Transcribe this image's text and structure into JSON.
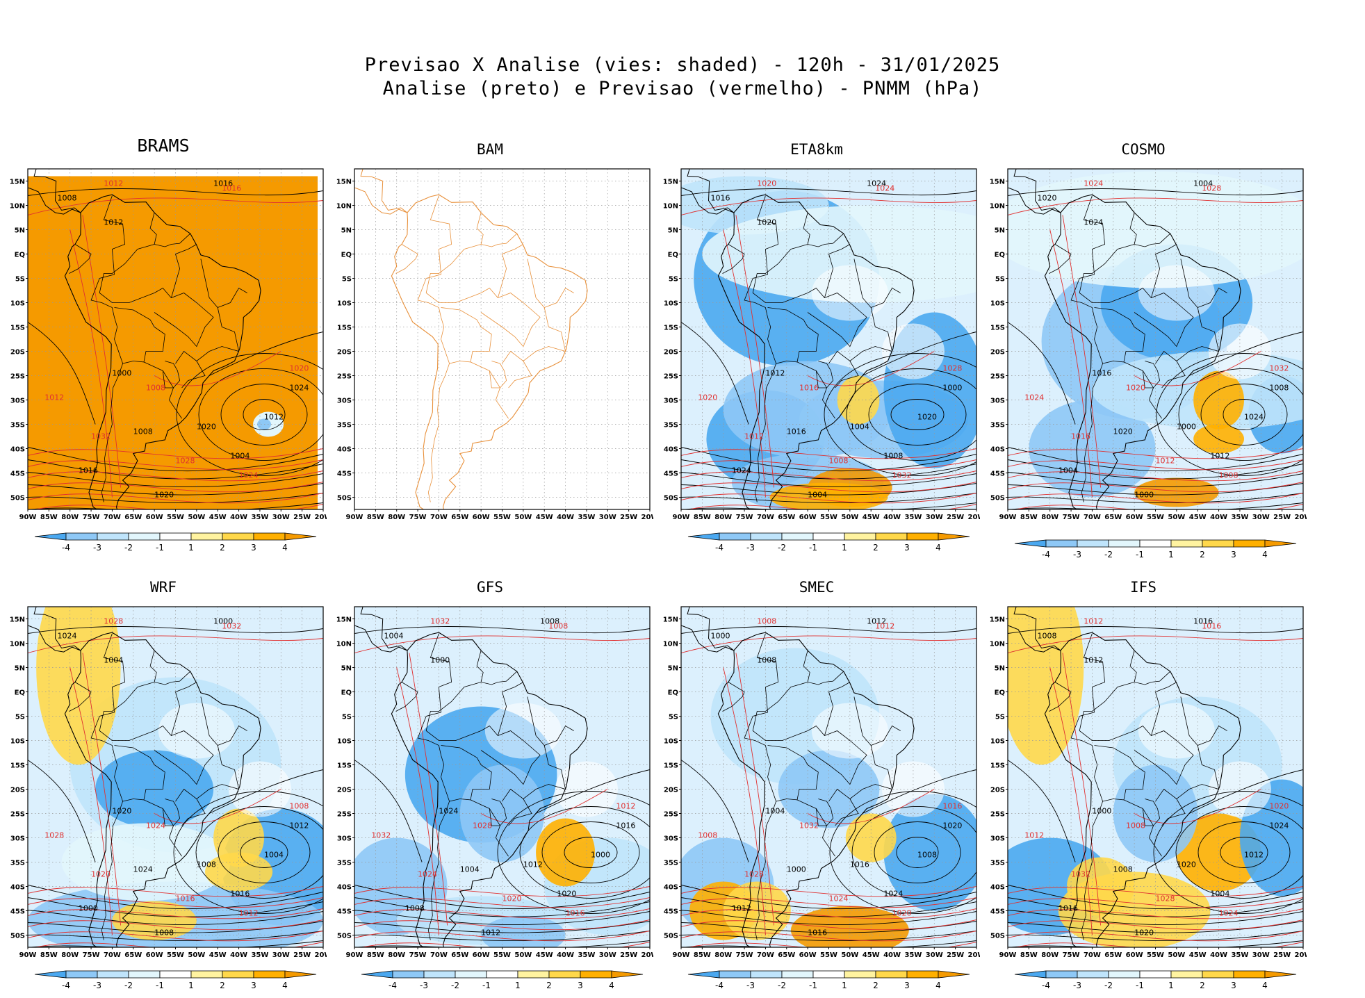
{
  "header": {
    "title_line1": "Previsao X Analise (vies: shaded) - 120h - 31/01/2025",
    "title_line2": "Analise (preto) e Previsao (vermelho) - PNMM (hPa)"
  },
  "axes": {
    "lat_labels": [
      "15N",
      "10N",
      "5N",
      "EQ",
      "5S",
      "10S",
      "15S",
      "20S",
      "25S",
      "30S",
      "35S",
      "40S",
      "45S",
      "50S"
    ],
    "lon_labels": [
      "90W",
      "85W",
      "80W",
      "75W",
      "70W",
      "65W",
      "60W",
      "55W",
      "50W",
      "45W",
      "40W",
      "35W",
      "30W",
      "25W",
      "20W"
    ]
  },
  "colorbar": {
    "labels": [
      "-4",
      "-3",
      "-2",
      "-1",
      "1",
      "2",
      "3",
      "4"
    ],
    "colors": [
      "#4aa8f0",
      "#8ec8f6",
      "#bfe4fb",
      "#e2f6fc",
      "#ffffff",
      "#fff3a0",
      "#ffd84a",
      "#ffb000",
      "#f59a00"
    ]
  },
  "colors": {
    "analysis_contour": "#000000",
    "forecast_contour": "#e03030",
    "border_bam": "#e8903a",
    "brams_fill": "#f59a00"
  },
  "contour_labels": {
    "black": [
      "1008",
      "1012",
      "1016",
      "1020",
      "1024",
      "1004",
      "1000"
    ],
    "red": [
      "1008",
      "1012",
      "1016",
      "1020",
      "1024",
      "1028",
      "1032"
    ]
  },
  "panels": [
    {
      "id": "brams",
      "title": "BRAMS",
      "style": "brams",
      "colorbar": true
    },
    {
      "id": "bam",
      "title": "BAM",
      "style": "bam",
      "colorbar": false
    },
    {
      "id": "eta8km",
      "title": "ETA8km",
      "style": "eta",
      "colorbar": true
    },
    {
      "id": "cosmo",
      "title": "COSMO",
      "style": "cosmo",
      "colorbar": true
    },
    {
      "id": "wrf",
      "title": "WRF",
      "style": "wrf",
      "colorbar": true
    },
    {
      "id": "gfs",
      "title": "GFS",
      "style": "gfs",
      "colorbar": true
    },
    {
      "id": "smec",
      "title": "SMEC",
      "style": "smec",
      "colorbar": true
    },
    {
      "id": "ifs",
      "title": "IFS",
      "style": "ifs",
      "colorbar": true
    }
  ]
}
